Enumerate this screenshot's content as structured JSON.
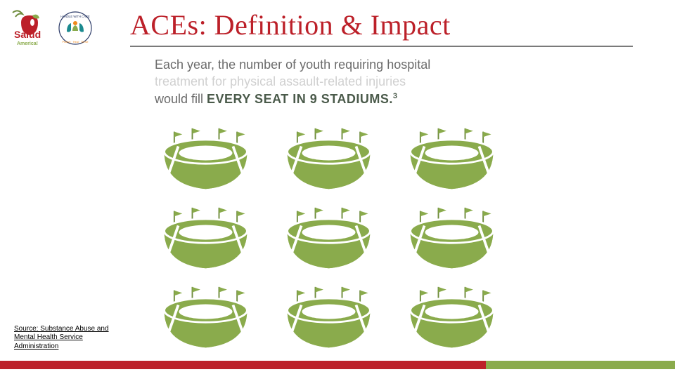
{
  "colors": {
    "title": "#bc2029",
    "body_text": "#6b6b6b",
    "body_text_muted": "#d0d0d0",
    "highlight": "#4a5a4a",
    "stadium_fill": "#8aab4c",
    "stadium_dark": "#6e8c3c",
    "footer_left": "#bc2029",
    "footer_right": "#8aab4c",
    "rule": "#7a7a7a",
    "logo_salud_red": "#bc2029",
    "logo_salud_green": "#8aab4c",
    "logo_hwc_teal": "#1b8a8f",
    "logo_hwc_orange": "#f08a1d",
    "logo_hwc_navy": "#2b3a67"
  },
  "title": "ACEs: Definition & Impact",
  "infographic": {
    "line1": "Each year, the number of youth requiring hospital",
    "line2": "treatment for physical assault-related injuries",
    "line3_prefix": "would fill ",
    "line3_highlight": "EVERY SEAT IN 9 STADIUMS.",
    "line3_sup": "3",
    "stadium_count": 9,
    "grid_cols": 3
  },
  "source": "Source: Substance Abuse and Mental Health Service Administration",
  "footer": {
    "left_pct": 72,
    "right_pct": 28
  },
  "logos": {
    "salud_label": "Salud America!",
    "hwc_label": "Handle With Care · Protect · Heal · Thrive"
  }
}
